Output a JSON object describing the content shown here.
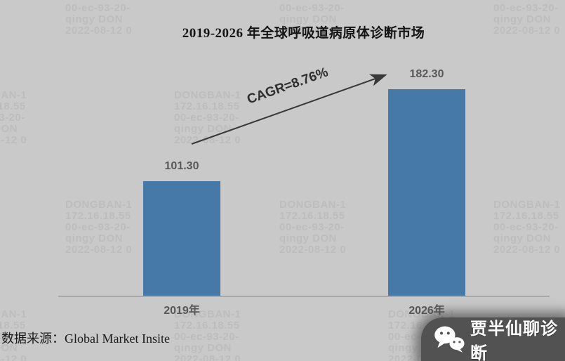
{
  "chart_data": {
    "type": "bar",
    "title": "2019-2026 年全球呼吸道病原体诊断市场",
    "categories": [
      "2019年",
      "2026年"
    ],
    "values": [
      101.3,
      182.3
    ],
    "value_labels": [
      "101.30",
      "182.30"
    ],
    "annotation": "CAGR=8.76%",
    "xlabel": "",
    "ylabel": "",
    "ylim": [
      0,
      200
    ],
    "grid": false,
    "legend": false,
    "bar_color": "#4678A8",
    "axis_color": "#A8A8A8",
    "label_color": "#595959"
  },
  "footer": {
    "source": "数据来源：Global Market Insite"
  },
  "badge": {
    "label": "贾半仙聊诊断",
    "icon": "wechat-icon",
    "background": "#525252",
    "text_color": "#FFFFFF"
  },
  "watermark": {
    "lines": [
      "DONGBAN-1",
      "172.16.18.55",
      "00-ec-93-20-",
      "qingy DON",
      "2022-08-12 0"
    ]
  },
  "colors": {
    "background": "#C9C9C9",
    "arrow": "#383838"
  }
}
